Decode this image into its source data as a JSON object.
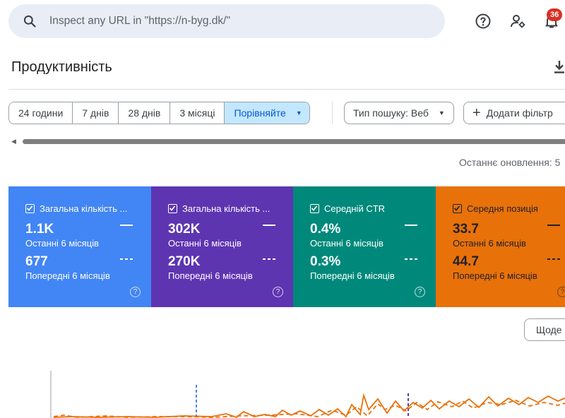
{
  "header": {
    "search": {
      "placeholder": "Inspect any URL in \"https://n-byg.dk/\""
    },
    "notifications_count": "36"
  },
  "page": {
    "title": "Продуктивність"
  },
  "filters": {
    "date_ranges": [
      "24 години",
      "7 днів",
      "28 днів",
      "3 місяці"
    ],
    "compare_label": "Порівняйте",
    "search_type_label": "Тип пошуку: Веб",
    "add_filter_label": "Додати фільтр"
  },
  "last_updated": "Останнє оновлення: 5",
  "metrics": [
    {
      "label": "Загальна кількість ...",
      "current_value": "1.1K",
      "current_period": "Останні 6 місяців",
      "previous_value": "677",
      "previous_period": "Попередні 6 місяців",
      "color": "#4285f4"
    },
    {
      "label": "Загальна кількість ...",
      "current_value": "302K",
      "current_period": "Останні 6 місяців",
      "previous_value": "270K",
      "previous_period": "Попередні 6 місяців",
      "color": "#5e35b1"
    },
    {
      "label": "Середній CTR",
      "current_value": "0.4%",
      "current_period": "Останні 6 місяців",
      "previous_value": "0.3%",
      "previous_period": "Попередні 6 місяців",
      "color": "#00897b"
    },
    {
      "label": "Середня позиція",
      "current_value": "33.7",
      "current_period": "Останні 6 місяців",
      "previous_value": "44.7",
      "previous_period": "Попередні 6 місяців",
      "color": "#e8710a"
    }
  ],
  "chart": {
    "granularity_label": "Щоде"
  },
  "colors": {
    "accent": "#0b57d0",
    "chip_active_bg": "#c2e7ff",
    "search_bg": "#e9eef6",
    "orange": "#e8710a",
    "blue": "#4285f4",
    "purple": "#5e35b1"
  },
  "icons": [
    "search-icon",
    "help-icon",
    "manage-users-icon",
    "notifications-icon",
    "download-icon",
    "checkbox-icon",
    "dropdown-caret-icon",
    "plus-icon",
    "scroll-left-arrow-icon"
  ]
}
